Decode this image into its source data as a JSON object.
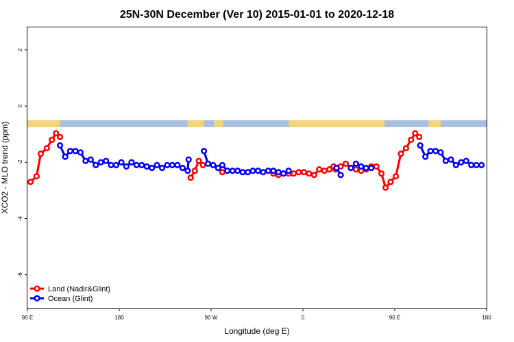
{
  "chart_data": {
    "type": "line",
    "title": "25N-30N December (Ver 10)   2015-01-01 to 2020-12-18",
    "xlabel": "Longitude (deg E)",
    "ylabel": "XCO2 - MLO trend (ppm)",
    "xlim": [
      90,
      540
    ],
    "ylim": [
      -7.2,
      2.8
    ],
    "x_ticks": [
      {
        "value": 90,
        "label": "90 E"
      },
      {
        "value": 180,
        "label": "180"
      },
      {
        "value": 270,
        "label": "90 W"
      },
      {
        "value": 360,
        "label": "0"
      },
      {
        "value": 450,
        "label": "90 E"
      },
      {
        "value": 540,
        "label": "180"
      }
    ],
    "y_ticks": [
      {
        "value": 2,
        "label": "2"
      },
      {
        "value": 0,
        "label": "0"
      },
      {
        "value": -2,
        "label": "-2"
      },
      {
        "value": -4,
        "label": "-4"
      },
      {
        "value": -6,
        "label": "-6"
      }
    ],
    "grid": false,
    "legend_position": "bottom-left",
    "land_band": {
      "y_range": [
        -0.75,
        -0.5
      ],
      "land_color": "#f2d47a",
      "ocean_color": "#a9bfdf",
      "land_segments": [
        [
          90,
          122
        ],
        [
          247,
          263
        ],
        [
          273,
          282
        ],
        [
          346,
          440
        ],
        [
          483,
          495
        ]
      ]
    },
    "series": [
      {
        "name": "Land (Nadir&Glint)",
        "color": "#ff0000",
        "segments": [
          [
            [
              93,
              -2.7
            ],
            [
              99,
              -2.5
            ],
            [
              103,
              -1.7
            ],
            [
              109,
              -1.5
            ],
            [
              114,
              -1.2
            ],
            [
              118,
              -0.97
            ],
            [
              122,
              -1.1
            ]
          ],
          [
            [
              250,
              -2.55
            ],
            [
              254,
              -2.3
            ],
            [
              258,
              -1.95
            ],
            [
              262,
              -2.1
            ]
          ],
          [
            [
              277,
              -2.2
            ],
            [
              281,
              -2.35
            ]
          ],
          [
            [
              331,
              -2.4
            ],
            [
              336,
              -2.45
            ],
            [
              341,
              -2.4
            ],
            [
              346,
              -2.4
            ],
            [
              351,
              -2.4
            ],
            [
              356,
              -2.35
            ],
            [
              361,
              -2.35
            ],
            [
              366,
              -2.4
            ],
            [
              371,
              -2.45
            ],
            [
              376,
              -2.25
            ],
            [
              381,
              -2.3
            ],
            [
              386,
              -2.25
            ],
            [
              390,
              -2.15
            ],
            [
              392,
              -2.25
            ],
            [
              397,
              -2.15
            ],
            [
              402,
              -2.05
            ],
            [
              407,
              -2.2
            ],
            [
              412,
              -2.25
            ],
            [
              417,
              -2.3
            ],
            [
              422,
              -2.25
            ],
            [
              427,
              -2.15
            ],
            [
              432,
              -2.15
            ],
            [
              437,
              -2.4
            ],
            [
              441,
              -2.9
            ],
            [
              446,
              -2.7
            ],
            [
              451,
              -2.5
            ],
            [
              456,
              -1.7
            ],
            [
              461,
              -1.5
            ],
            [
              466,
              -1.2
            ],
            [
              470,
              -0.97
            ],
            [
              474,
              -1.1
            ]
          ]
        ]
      },
      {
        "name": "Ocean (Glint)",
        "color": "#0000ff",
        "segments": [
          [
            [
              122,
              -1.4
            ],
            [
              127,
              -1.8
            ],
            [
              132,
              -1.6
            ],
            [
              137,
              -1.6
            ],
            [
              142,
              -1.65
            ],
            [
              147,
              -1.95
            ],
            [
              152,
              -1.9
            ],
            [
              157,
              -2.1
            ],
            [
              162,
              -2.0
            ],
            [
              167,
              -1.95
            ],
            [
              172,
              -2.1
            ],
            [
              177,
              -2.1
            ],
            [
              182,
              -2.0
            ],
            [
              187,
              -2.15
            ],
            [
              192,
              -2.0
            ],
            [
              197,
              -2.1
            ],
            [
              202,
              -2.1
            ],
            [
              207,
              -2.15
            ],
            [
              212,
              -2.2
            ],
            [
              217,
              -2.1
            ],
            [
              222,
              -2.2
            ],
            [
              227,
              -2.1
            ],
            [
              232,
              -2.1
            ],
            [
              237,
              -2.1
            ],
            [
              242,
              -2.2
            ],
            [
              247,
              -2.3
            ],
            [
              248,
              -1.9
            ]
          ],
          [
            [
              263,
              -1.6
            ],
            [
              267,
              -2.05
            ],
            [
              272,
              -2.1
            ],
            [
              277,
              -2.2
            ],
            [
              281,
              -2.1
            ],
            [
              286,
              -2.3
            ],
            [
              291,
              -2.3
            ],
            [
              296,
              -2.3
            ],
            [
              301,
              -2.35
            ],
            [
              306,
              -2.35
            ],
            [
              311,
              -2.3
            ],
            [
              316,
              -2.3
            ],
            [
              321,
              -2.35
            ],
            [
              326,
              -2.3
            ],
            [
              331,
              -2.3
            ],
            [
              336,
              -2.35
            ],
            [
              341,
              -2.4
            ],
            [
              346,
              -2.3
            ]
          ],
          [
            [
              393,
              -2.2
            ],
            [
              397,
              -2.45
            ]
          ],
          [
            [
              407,
              -2.2
            ],
            [
              412,
              -2.05
            ],
            [
              417,
              -2.15
            ],
            [
              422,
              -2.2
            ],
            [
              427,
              -2.2
            ]
          ],
          [
            [
              475,
              -1.4
            ],
            [
              480,
              -1.8
            ],
            [
              485,
              -1.6
            ],
            [
              490,
              -1.6
            ],
            [
              495,
              -1.65
            ],
            [
              500,
              -1.95
            ],
            [
              505,
              -1.9
            ],
            [
              510,
              -2.1
            ],
            [
              515,
              -2.0
            ],
            [
              520,
              -1.95
            ],
            [
              525,
              -2.1
            ],
            [
              530,
              -2.1
            ],
            [
              535,
              -2.1
            ]
          ]
        ]
      }
    ]
  }
}
